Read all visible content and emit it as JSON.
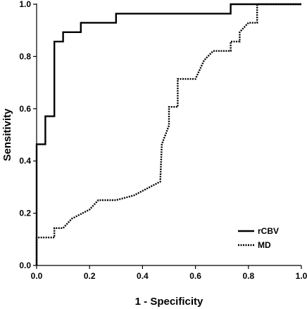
{
  "chart_data": {
    "type": "line",
    "title": "",
    "xlabel": "1 - Specificity",
    "ylabel": "Sensitivity",
    "xlim": [
      0,
      1
    ],
    "ylim": [
      0,
      1
    ],
    "x_ticks": [
      "0.0",
      "0.2",
      "0.4",
      "0.6",
      "0.8",
      "1.0"
    ],
    "y_ticks": [
      "0.0",
      "0.2",
      "0.4",
      "0.6",
      "0.8",
      "1.0"
    ],
    "grid": false,
    "legend_position": "bottom-right",
    "series": [
      {
        "name": "rCBV",
        "style": "solid",
        "color": "#000000",
        "points": [
          [
            0.0,
            0.0
          ],
          [
            0.0,
            0.464
          ],
          [
            0.033,
            0.464
          ],
          [
            0.033,
            0.571
          ],
          [
            0.067,
            0.571
          ],
          [
            0.067,
            0.857
          ],
          [
            0.1,
            0.857
          ],
          [
            0.1,
            0.893
          ],
          [
            0.167,
            0.893
          ],
          [
            0.167,
            0.929
          ],
          [
            0.3,
            0.929
          ],
          [
            0.3,
            0.964
          ],
          [
            0.733,
            0.964
          ],
          [
            0.733,
            1.0
          ],
          [
            1.0,
            1.0
          ]
        ]
      },
      {
        "name": "MD",
        "style": "dotted",
        "color": "#000000",
        "points": [
          [
            0.0,
            0.0
          ],
          [
            0.0,
            0.107
          ],
          [
            0.067,
            0.107
          ],
          [
            0.067,
            0.143
          ],
          [
            0.1,
            0.143
          ],
          [
            0.133,
            0.179
          ],
          [
            0.2,
            0.214
          ],
          [
            0.233,
            0.25
          ],
          [
            0.3,
            0.25
          ],
          [
            0.367,
            0.268
          ],
          [
            0.467,
            0.321
          ],
          [
            0.473,
            0.464
          ],
          [
            0.5,
            0.536
          ],
          [
            0.5,
            0.607
          ],
          [
            0.533,
            0.607
          ],
          [
            0.533,
            0.714
          ],
          [
            0.6,
            0.714
          ],
          [
            0.633,
            0.786
          ],
          [
            0.667,
            0.821
          ],
          [
            0.733,
            0.821
          ],
          [
            0.733,
            0.857
          ],
          [
            0.767,
            0.857
          ],
          [
            0.767,
            0.893
          ],
          [
            0.8,
            0.929
          ],
          [
            0.833,
            0.929
          ],
          [
            0.833,
            1.0
          ],
          [
            1.0,
            1.0
          ]
        ]
      }
    ]
  }
}
